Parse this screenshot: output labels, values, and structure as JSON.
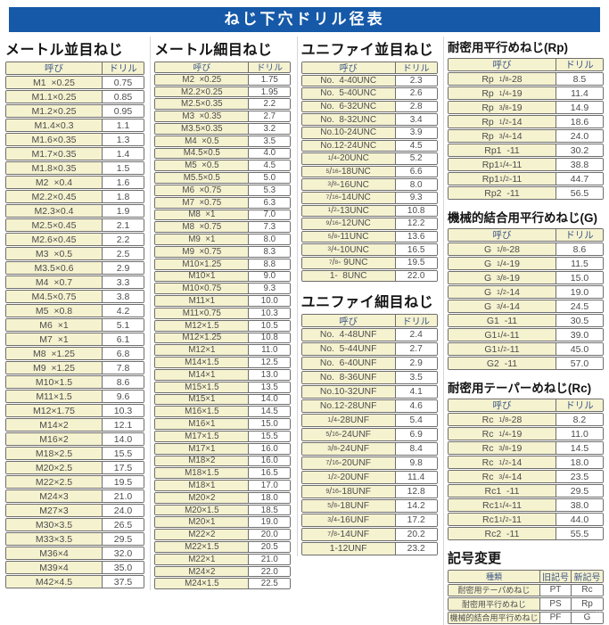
{
  "title": "ねじ下穴ドリル径表",
  "colors": {
    "banner_blue": "#1659a8",
    "cell_yellow": "#f5f2cf",
    "header_text_navy": "#3d5787",
    "body_text_gray": "#4d4d4d",
    "row_border": "#6e6e6e"
  },
  "table_headers": {
    "name": "呼び",
    "drill": "ドリル"
  },
  "sections": {
    "metric_coarse": {
      "title": "メートル並目ねじ",
      "rows": [
        [
          "M1  ×0.25",
          "0.75"
        ],
        [
          "M1.1×0.25",
          "0.85"
        ],
        [
          "M1.2×0.25",
          "0.95"
        ],
        [
          "M1.4×0.3",
          "1.1"
        ],
        [
          "M1.6×0.35",
          "1.3"
        ],
        [
          "M1.7×0.35",
          "1.4"
        ],
        [
          "M1.8×0.35",
          "1.5"
        ],
        [
          "M2  ×0.4",
          "1.6"
        ],
        [
          "M2.2×0.45",
          "1.8"
        ],
        [
          "M2.3×0.4",
          "1.9"
        ],
        [
          "M2.5×0.45",
          "2.1"
        ],
        [
          "M2.6×0.45",
          "2.2"
        ],
        [
          "M3  ×0.5",
          "2.5"
        ],
        [
          "M3.5×0.6",
          "2.9"
        ],
        [
          "M4  ×0.7",
          "3.3"
        ],
        [
          "M4.5×0.75",
          "3.8"
        ],
        [
          "M5  ×0.8",
          "4.2"
        ],
        [
          "M6  ×1",
          "5.1"
        ],
        [
          "M7  ×1",
          "6.1"
        ],
        [
          "M8  ×1.25",
          "6.8"
        ],
        [
          "M9  ×1.25",
          "7.8"
        ],
        [
          "M10×1.5",
          "8.6"
        ],
        [
          "M11×1.5",
          "9.6"
        ],
        [
          "M12×1.75",
          "10.3"
        ],
        [
          "M14×2",
          "12.1"
        ],
        [
          "M16×2",
          "14.0"
        ],
        [
          "M18×2.5",
          "15.5"
        ],
        [
          "M20×2.5",
          "17.5"
        ],
        [
          "M22×2.5",
          "19.5"
        ],
        [
          "M24×3",
          "21.0"
        ],
        [
          "M27×3",
          "24.0"
        ],
        [
          "M30×3.5",
          "26.5"
        ],
        [
          "M33×3.5",
          "29.5"
        ],
        [
          "M36×4",
          "32.0"
        ],
        [
          "M39×4",
          "35.0"
        ],
        [
          "M42×4.5",
          "37.5"
        ]
      ]
    },
    "metric_fine": {
      "title": "メートル細目ねじ",
      "rows": [
        [
          "M2  ×0.25",
          "1.75"
        ],
        [
          "M2.2×0.25",
          "1.95"
        ],
        [
          "M2.5×0.35",
          "2.2"
        ],
        [
          "M3  ×0.35",
          "2.7"
        ],
        [
          "M3.5×0.35",
          "3.2"
        ],
        [
          "M4  ×0.5",
          "3.5"
        ],
        [
          "M4.5×0.5",
          "4.0"
        ],
        [
          "M5  ×0.5",
          "4.5"
        ],
        [
          "M5.5×0.5",
          "5.0"
        ],
        [
          "M6  ×0.75",
          "5.3"
        ],
        [
          "M7  ×0.75",
          "6.3"
        ],
        [
          "M8  ×1",
          "7.0"
        ],
        [
          "M8  ×0.75",
          "7.3"
        ],
        [
          "M9  ×1",
          "8.0"
        ],
        [
          "M9  ×0.75",
          "8.3"
        ],
        [
          "M10×1.25",
          "8.8"
        ],
        [
          "M10×1",
          "9.0"
        ],
        [
          "M10×0.75",
          "9.3"
        ],
        [
          "M11×1",
          "10.0"
        ],
        [
          "M11×0.75",
          "10.3"
        ],
        [
          "M12×1.5",
          "10.5"
        ],
        [
          "M12×1.25",
          "10.8"
        ],
        [
          "M12×1",
          "11.0"
        ],
        [
          "M14×1.5",
          "12.5"
        ],
        [
          "M14×1",
          "13.0"
        ],
        [
          "M15×1.5",
          "13.5"
        ],
        [
          "M15×1",
          "14.0"
        ],
        [
          "M16×1.5",
          "14.5"
        ],
        [
          "M16×1",
          "15.0"
        ],
        [
          "M17×1.5",
          "15.5"
        ],
        [
          "M17×1",
          "16.0"
        ],
        [
          "M18×2",
          "16.0"
        ],
        [
          "M18×1.5",
          "16.5"
        ],
        [
          "M18×1",
          "17.0"
        ],
        [
          "M20×2",
          "18.0"
        ],
        [
          "M20×1.5",
          "18.5"
        ],
        [
          "M20×1",
          "19.0"
        ],
        [
          "M22×2",
          "20.0"
        ],
        [
          "M22×1.5",
          "20.5"
        ],
        [
          "M22×1",
          "21.0"
        ],
        [
          "M24×2",
          "22.0"
        ],
        [
          "M24×1.5",
          "22.5"
        ]
      ]
    },
    "unified_coarse": {
      "title": "ユニファイ並目ねじ",
      "rows": [
        [
          "No.  4-40UNC",
          "2.3"
        ],
        [
          "No.  5-40UNC",
          "2.6"
        ],
        [
          "No.  6-32UNC",
          "2.8"
        ],
        [
          "No.  8-32UNC",
          "3.4"
        ],
        [
          "No.10-24UNC",
          "3.9"
        ],
        [
          "No.12-24UNC",
          "4.5"
        ],
        [
          "1/4-20UNC",
          "5.2"
        ],
        [
          "5/16-18UNC",
          "6.6"
        ],
        [
          "3/8-16UNC",
          "8.0"
        ],
        [
          "7/16-14UNC",
          "9.3"
        ],
        [
          "1/2-13UNC",
          "10.8"
        ],
        [
          "9/16-12UNC",
          "12.2"
        ],
        [
          "5/8-11UNC",
          "13.6"
        ],
        [
          "3/4-10UNC",
          "16.5"
        ],
        [
          "7/8- 9UNC",
          "19.5"
        ],
        [
          "1-  8UNC",
          "22.0"
        ]
      ]
    },
    "unified_fine": {
      "title": "ユニファイ細目ねじ",
      "rows": [
        [
          "No.  4-48UNF",
          "2.4"
        ],
        [
          "No.  5-44UNF",
          "2.7"
        ],
        [
          "No.  6-40UNF",
          "2.9"
        ],
        [
          "No.  8-36UNF",
          "3.5"
        ],
        [
          "No.10-32UNF",
          "4.1"
        ],
        [
          "No.12-28UNF",
          "4.6"
        ],
        [
          "1/4-28UNF",
          "5.4"
        ],
        [
          "5/16-24UNF",
          "6.9"
        ],
        [
          "3/8-24UNF",
          "8.4"
        ],
        [
          "7/16-20UNF",
          "9.8"
        ],
        [
          "1/2-20UNF",
          "11.4"
        ],
        [
          "9/16-18UNF",
          "12.8"
        ],
        [
          "5/8-18UNF",
          "14.2"
        ],
        [
          "3/4-16UNF",
          "17.2"
        ],
        [
          "7/8-14UNF",
          "20.2"
        ],
        [
          "1-12UNF",
          "23.2"
        ]
      ]
    },
    "rp": {
      "title": "耐密用平行めねじ(Rp)",
      "rows": [
        [
          "Rp  1/8-28",
          "8.5"
        ],
        [
          "Rp  1/4-19",
          "11.4"
        ],
        [
          "Rp  3/8-19",
          "14.9"
        ],
        [
          "Rp  1/2-14",
          "18.6"
        ],
        [
          "Rp  3/4-14",
          "24.0"
        ],
        [
          "Rp1  -11",
          "30.2"
        ],
        [
          "Rp1 1/4-11",
          "38.8"
        ],
        [
          "Rp1 1/2-11",
          "44.7"
        ],
        [
          "Rp2  -11",
          "56.5"
        ]
      ]
    },
    "g": {
      "title": "機械的結合用平行めねじ(G)",
      "rows": [
        [
          "G  1/8-28",
          "8.6"
        ],
        [
          "G  1/4-19",
          "11.5"
        ],
        [
          "G  3/8-19",
          "15.0"
        ],
        [
          "G  1/2-14",
          "19.0"
        ],
        [
          "G  3/4-14",
          "24.5"
        ],
        [
          "G1  -11",
          "30.5"
        ],
        [
          "G1 1/4-11",
          "39.0"
        ],
        [
          "G1 1/2-11",
          "45.0"
        ],
        [
          "G2  -11",
          "57.0"
        ]
      ]
    },
    "rc": {
      "title": "耐密用テーパーめねじ(Rc)",
      "rows": [
        [
          "Rc  1/8-28",
          "8.2"
        ],
        [
          "Rc  1/4-19",
          "11.0"
        ],
        [
          "Rc  3/8-19",
          "14.5"
        ],
        [
          "Rc  1/2-14",
          "18.0"
        ],
        [
          "Rc  3/4-14",
          "23.5"
        ],
        [
          "Rc1  -11",
          "29.5"
        ],
        [
          "Rc1 1/4-11",
          "38.0"
        ],
        [
          "Rc1 1/2-11",
          "44.0"
        ],
        [
          "Rc2  -11",
          "55.5"
        ]
      ]
    },
    "symbol_change": {
      "title": "記号変更",
      "headers": [
        "種類",
        "旧記号",
        "新記号"
      ],
      "rows": [
        [
          "耐密用テーパめねじ",
          "PT",
          "Rc"
        ],
        [
          "耐密用平行めねじ",
          "PS",
          "Rp"
        ],
        [
          "機械的結合用平行めねじ",
          "PF",
          "G"
        ]
      ]
    }
  },
  "corner_mark": ".."
}
